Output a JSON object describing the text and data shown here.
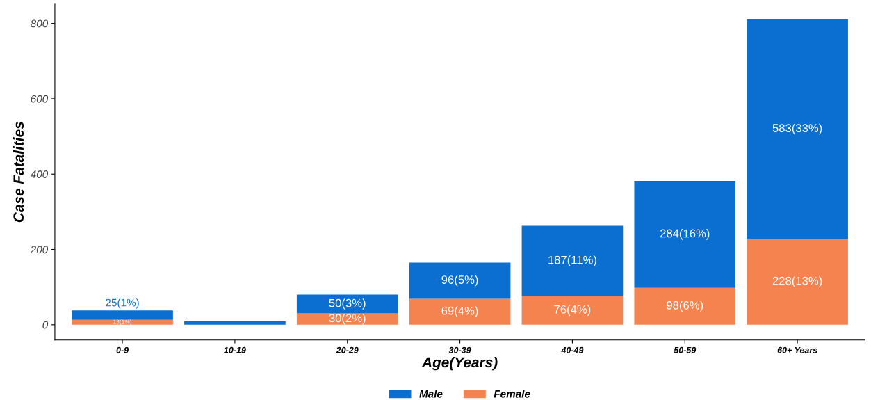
{
  "chart_data": {
    "type": "bar",
    "stacked": true,
    "xlabel": "Age(Years)",
    "ylabel": "Case Fatalities",
    "categories": [
      "0-9",
      "10-19",
      "20-29",
      "30-39",
      "40-49",
      "50-59",
      "60+ Years"
    ],
    "series": [
      {
        "name": "Female",
        "color": "#f5834f",
        "values": [
          13,
          null,
          30,
          69,
          76,
          98,
          228
        ],
        "value_labels": [
          "13(1%)",
          null,
          "30(2%)",
          "69(4%)",
          "76(4%)",
          "98(6%)",
          "228(13%)"
        ]
      },
      {
        "name": "Male",
        "color": "#0a6fd1",
        "values": [
          25,
          9,
          50,
          96,
          187,
          284,
          583
        ],
        "value_labels": [
          "25(1%)",
          null,
          "50(3%)",
          "96(5%)",
          "187(11%)",
          "284(16%)",
          "583(33%)"
        ]
      }
    ],
    "ylim": [
      -40.5,
      851.5
    ],
    "yticks": [
      0,
      200,
      400,
      600,
      800
    ],
    "grid": false,
    "legend": "bottom"
  }
}
